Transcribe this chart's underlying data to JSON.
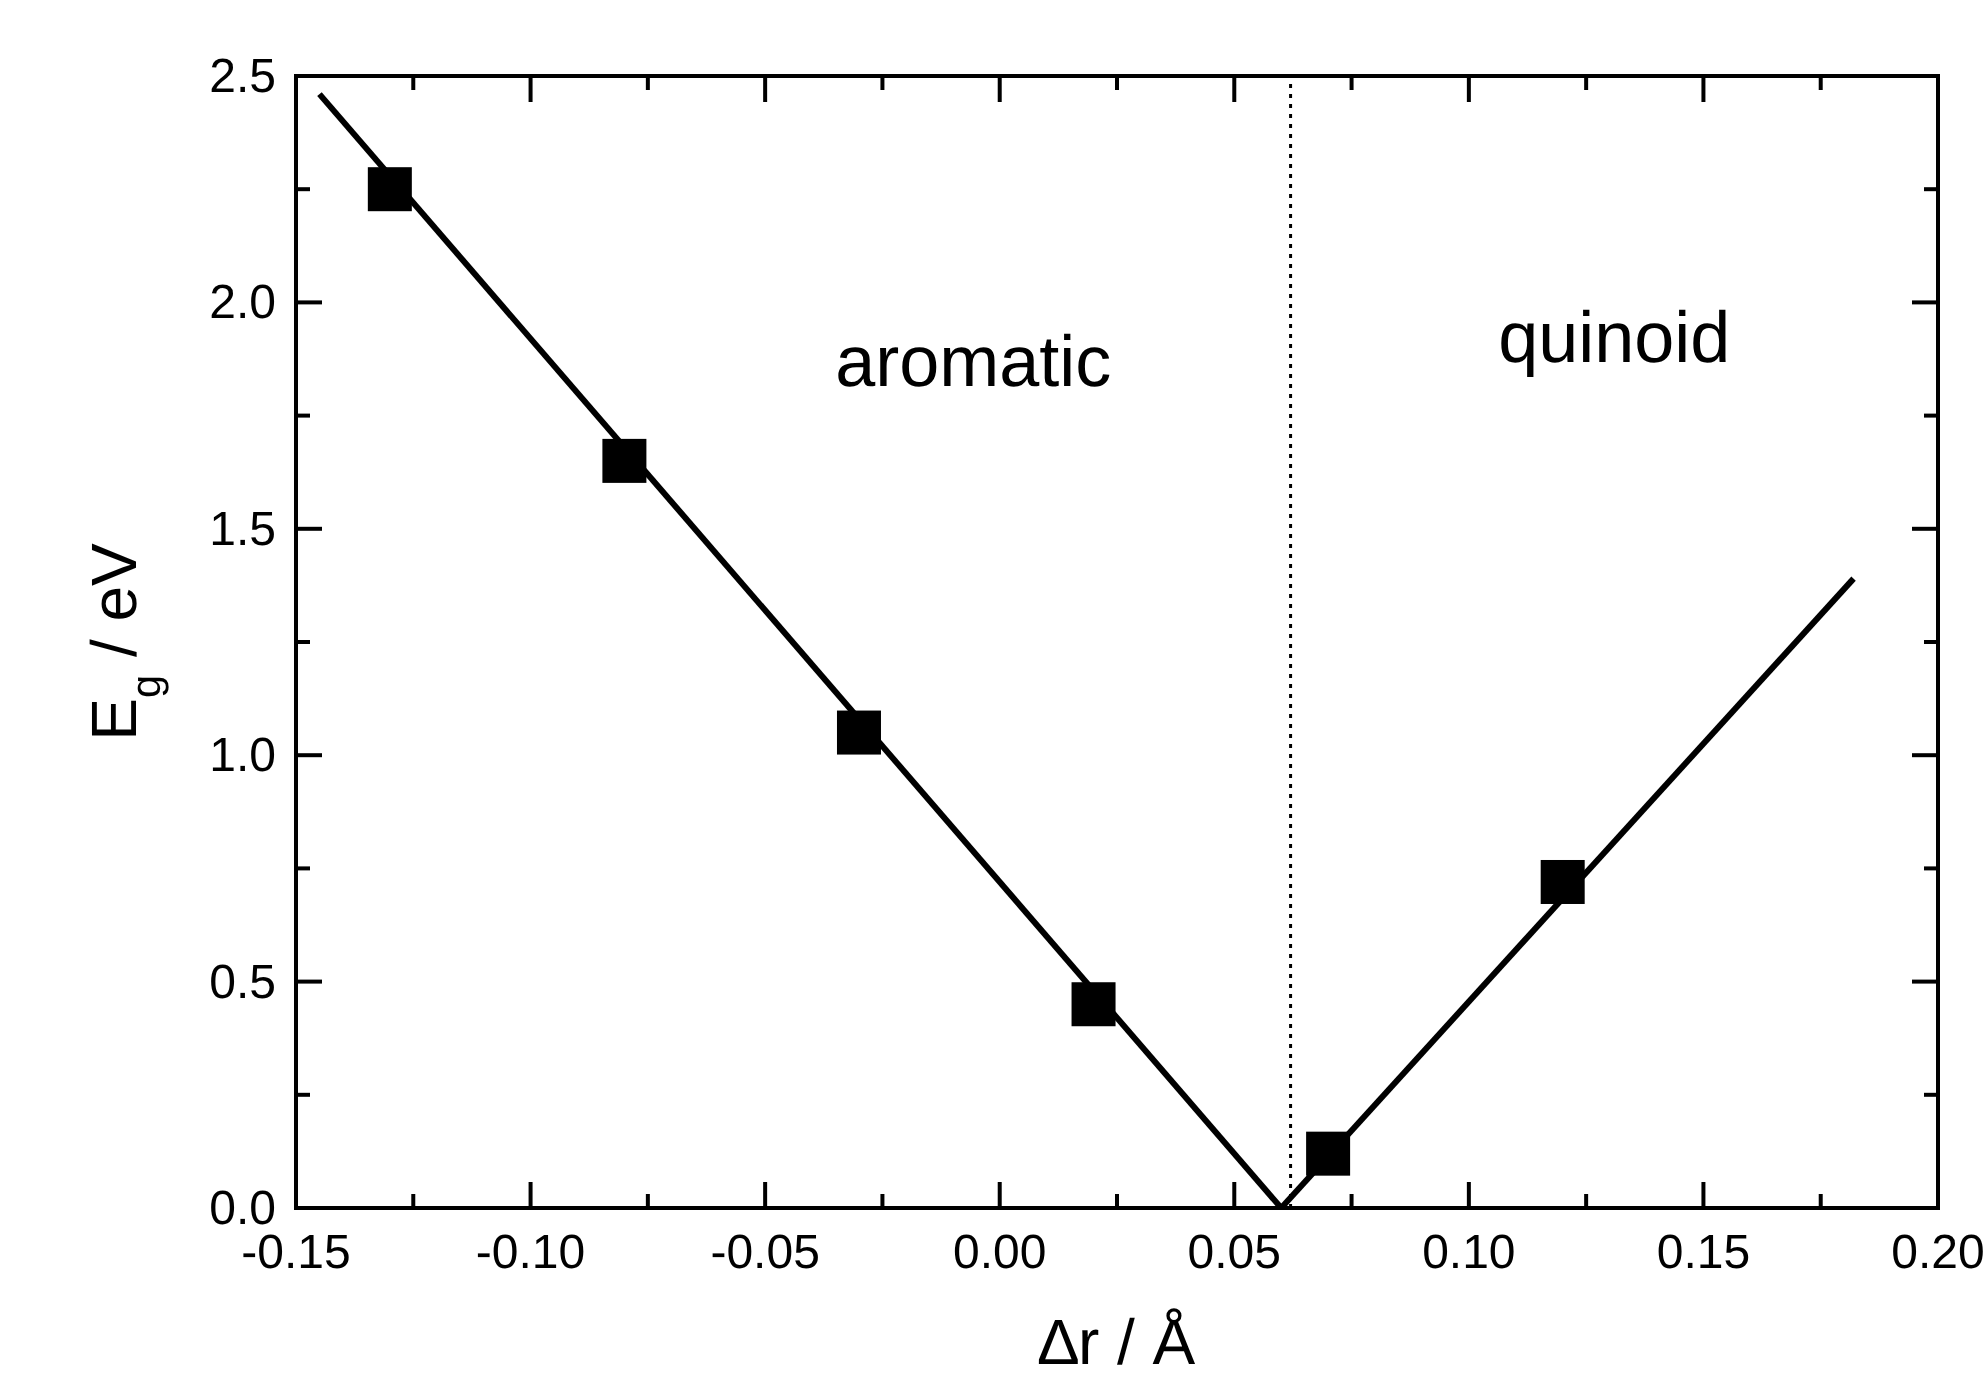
{
  "chart_data": {
    "type": "scatter",
    "xlabel": "∆r /  Å",
    "ylabel": "E$_{g}$ / eV",
    "xlim": [
      -0.15,
      0.2
    ],
    "ylim": [
      0,
      2.5
    ],
    "xticks": [
      {
        "value": -0.15,
        "label": "-0.15"
      },
      {
        "value": -0.125,
        "label": null
      },
      {
        "value": -0.1,
        "label": "-0.10"
      },
      {
        "value": -0.075,
        "label": null
      },
      {
        "value": -0.05,
        "label": "-0.05"
      },
      {
        "value": -0.025,
        "label": null
      },
      {
        "value": 0,
        "label": "0.00"
      },
      {
        "value": 0.025,
        "label": null
      },
      {
        "value": 0.05,
        "label": "0.05"
      },
      {
        "value": 0.075,
        "label": null
      },
      {
        "value": 0.1,
        "label": "0.10"
      },
      {
        "value": 0.125,
        "label": null
      },
      {
        "value": 0.15,
        "label": "0.15"
      },
      {
        "value": 0.175,
        "label": null
      },
      {
        "value": 0.2,
        "label": "0.20"
      }
    ],
    "yticks": [
      {
        "value": 0,
        "label": "0.0"
      },
      {
        "value": 0.25,
        "label": null
      },
      {
        "value": 0.5,
        "label": "0.5"
      },
      {
        "value": 0.75,
        "label": null
      },
      {
        "value": 1,
        "label": "1.0"
      },
      {
        "value": 1.25,
        "label": null
      },
      {
        "value": 1.5,
        "label": "1.5"
      },
      {
        "value": 1.75,
        "label": null
      },
      {
        "value": 2,
        "label": "2.0"
      },
      {
        "value": 2.25,
        "label": null
      },
      {
        "value": 2.5,
        "label": "2.5"
      }
    ],
    "grid": false,
    "series": [
      {
        "color": "#000000",
        "marker": "square",
        "x": [
          -0.13,
          -0.08,
          -0.03,
          0.02,
          0.07,
          0.12
        ],
        "values": [
          2.25,
          1.65,
          1.05,
          0.45,
          0.12,
          0.72
        ]
      },
      {
        "type": "line",
        "color": "#000000",
        "marker": "none",
        "line_style": "solid",
        "x": [
          -0.145,
          0.06
        ],
        "values": [
          2.46,
          0
        ]
      },
      {
        "type": "line",
        "color": "#000000",
        "marker": "none",
        "line_style": "solid",
        "x": [
          0.06,
          0.182
        ],
        "values": [
          0,
          1.39
        ]
      }
    ],
    "ref_lines": [
      {
        "axis": "x",
        "value": 0.062,
        "line_style": "dotted",
        "color": "#000000"
      }
    ],
    "annotations": [
      "aromatic",
      "quinoid"
    ]
  }
}
